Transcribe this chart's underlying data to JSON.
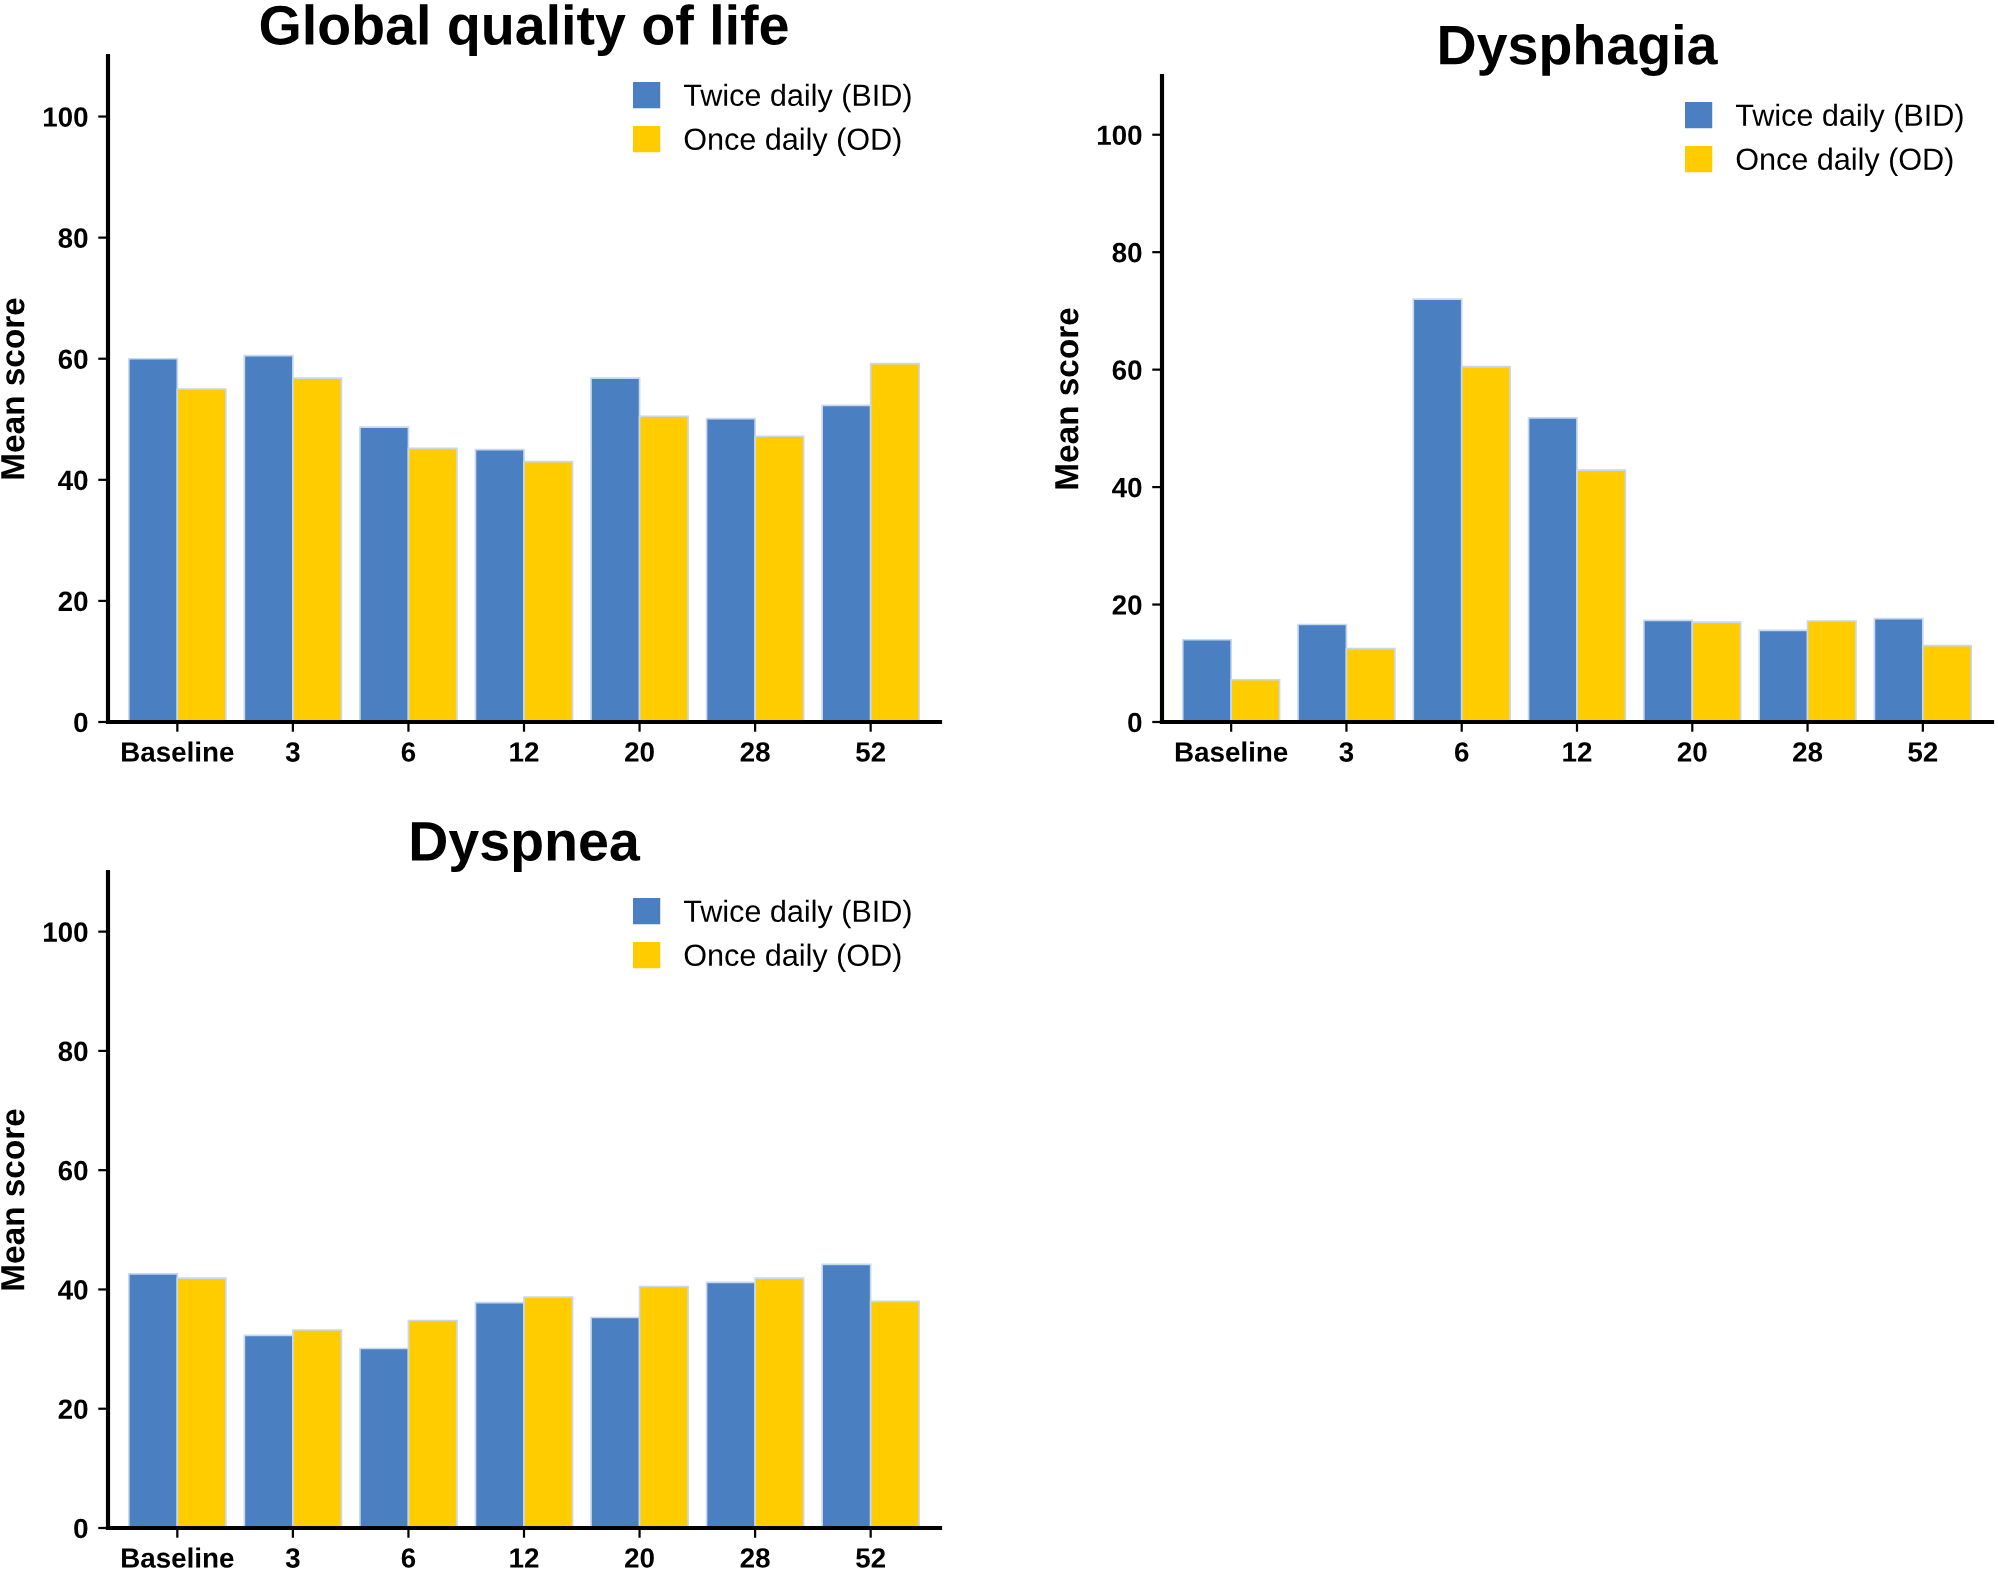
{
  "chart_data": [
    {
      "type": "bar",
      "title": "Global quality of life",
      "ylabel": "Mean score",
      "categories": [
        "Baseline",
        "3",
        "6",
        "12",
        "20",
        "28",
        "52"
      ],
      "series": [
        {
          "name": "Twice daily (BID)",
          "color": "#4a7fc1",
          "values": [
            60,
            60.5,
            48.7,
            45,
            56.8,
            50.1,
            52.3
          ]
        },
        {
          "name": "Once daily (OD)",
          "color": "#ffcc00",
          "values": [
            55,
            56.8,
            45.2,
            43,
            50.5,
            47.2,
            59.2
          ]
        }
      ],
      "ylim": [
        0,
        110
      ],
      "yticks": [
        0,
        20,
        40,
        60,
        80,
        100
      ],
      "legend": "top right"
    },
    {
      "type": "bar",
      "title": "Dysphagia",
      "ylabel": "Mean score",
      "categories": [
        "Baseline",
        "3",
        "6",
        "12",
        "20",
        "28",
        "52"
      ],
      "series": [
        {
          "name": "Twice daily (BID)",
          "color": "#4a7fc1",
          "values": [
            14,
            16.6,
            72,
            51.8,
            17.3,
            15.6,
            17.6
          ]
        },
        {
          "name": "Once daily (OD)",
          "color": "#ffcc00",
          "values": [
            7.2,
            12.5,
            60.5,
            42.9,
            17,
            17.2,
            13
          ]
        }
      ],
      "ylim": [
        0,
        110
      ],
      "yticks": [
        0,
        20,
        40,
        60,
        80,
        100
      ],
      "legend": "top right"
    },
    {
      "type": "bar",
      "title": "Dyspnea",
      "ylabel": "Mean score",
      "categories": [
        "Baseline",
        "3",
        "6",
        "12",
        "20",
        "28",
        "52"
      ],
      "series": [
        {
          "name": "Twice daily (BID)",
          "color": "#4a7fc1",
          "values": [
            42.6,
            32.3,
            30.1,
            37.8,
            35.3,
            41.2,
            44.2
          ]
        },
        {
          "name": "Once daily (OD)",
          "color": "#ffcc00",
          "values": [
            41.9,
            33.2,
            34.8,
            38.7,
            40.5,
            41.9,
            38
          ]
        }
      ],
      "ylim": [
        0,
        110
      ],
      "yticks": [
        0,
        20,
        40,
        60,
        80,
        100
      ],
      "legend": "top right"
    }
  ]
}
